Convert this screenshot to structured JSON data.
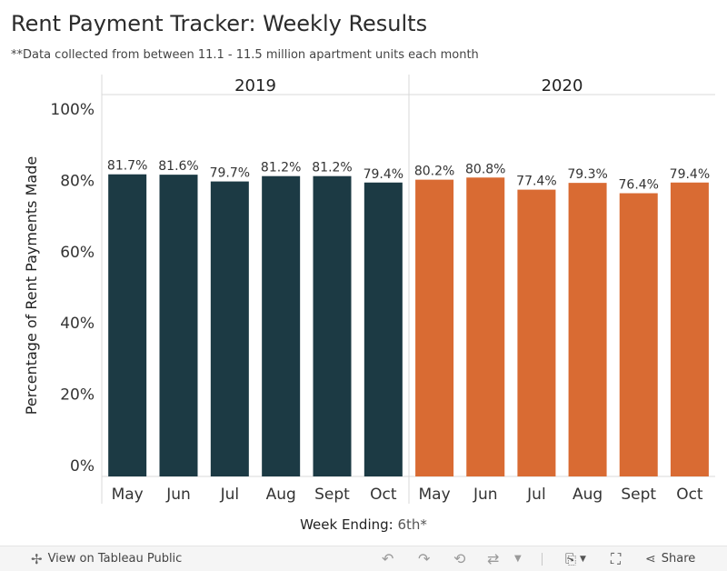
{
  "title": "Rent Payment Tracker: Weekly Results",
  "subtitle": "**Data collected from between 11.1 - 11.5 million apartment units each month",
  "chart_data": {
    "type": "bar",
    "ylabel": "Percentage of Rent Payments Made",
    "xlabel_prefix": "Week Ending:",
    "xlabel_value": "6th*",
    "yticks": [
      "0%",
      "20%",
      "40%",
      "60%",
      "80%",
      "100%"
    ],
    "ylim": [
      0,
      100
    ],
    "panels": [
      {
        "name": "2019",
        "color": "#1c3a44",
        "categories": [
          "May",
          "Jun",
          "Jul",
          "Aug",
          "Sept",
          "Oct"
        ],
        "values": [
          81.7,
          81.6,
          79.7,
          81.2,
          81.2,
          79.4
        ],
        "labels": [
          "81.7%",
          "81.6%",
          "79.7%",
          "81.2%",
          "81.2%",
          "79.4%"
        ]
      },
      {
        "name": "2020",
        "color": "#d96b33",
        "categories": [
          "May",
          "Jun",
          "Jul",
          "Aug",
          "Sept",
          "Oct"
        ],
        "values": [
          80.2,
          80.8,
          77.4,
          79.3,
          76.4,
          79.4
        ],
        "labels": [
          "80.2%",
          "80.8%",
          "77.4%",
          "79.3%",
          "76.4%",
          "79.4%"
        ]
      }
    ]
  },
  "toolbar": {
    "view_label": "View on Tableau Public",
    "share_label": "Share",
    "icons": [
      "tableau-icon",
      "undo-icon",
      "redo-icon",
      "revert-icon",
      "refresh-icon",
      "download-icon",
      "fullscreen-icon",
      "share-icon"
    ]
  }
}
